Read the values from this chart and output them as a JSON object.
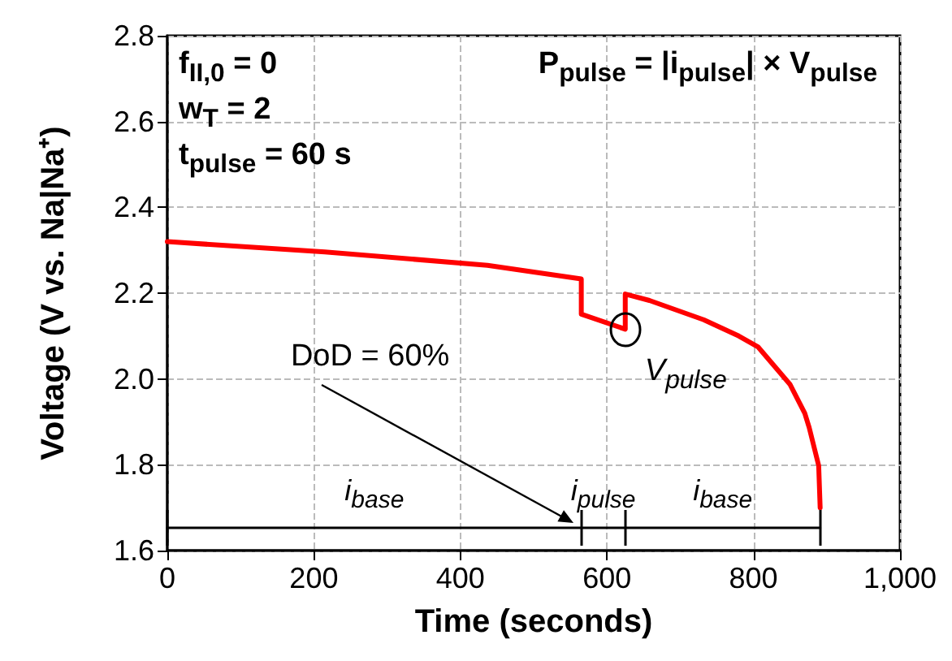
{
  "chart_data": {
    "type": "line",
    "xlabel": "Time (seconds)",
    "ylabel": "Voltage (V vs. Na|Na⁺)",
    "xlim": [
      0,
      1000
    ],
    "xticks": [
      0,
      200,
      400,
      600,
      800,
      {
        "value": 1000,
        "label": "1,000"
      }
    ],
    "ylim": [
      1.6,
      2.8
    ],
    "yticks": [
      1.6,
      1.8,
      {
        "value": 2.0,
        "label": "2.0"
      },
      2.2,
      2.4,
      2.6,
      2.8
    ],
    "grid": true,
    "marker": "none",
    "line_style": "solid",
    "series": [
      {
        "color": "#ff0000",
        "x": [
          0,
          215,
          437,
          565,
          565,
          625,
          625,
          658,
          732,
          780,
          806,
          850,
          870,
          876,
          889,
          891
        ],
        "values": [
          2.32,
          2.296,
          2.265,
          2.233,
          2.151,
          2.116,
          2.198,
          2.183,
          2.138,
          2.1,
          2.075,
          1.987,
          1.92,
          1.887,
          1.798,
          1.7
        ]
      },
      {
        "color": "#000000",
        "x": [
          0,
          565,
          625,
          891
        ],
        "values": [
          1.653,
          1.653,
          1.653,
          1.653
        ]
      }
    ],
    "annotations": [
      "f$_{II,0}$ = 0",
      "w$_{T}$ = 2",
      "t$_{pulse}$ = 60 s",
      "P$_{pulse}$ = |i$_{pulse}$| × V$_{pulse}$",
      "DoD = 60%",
      "i$_{base}$",
      "i$_{pulse}$",
      "i$_{base}$",
      {
        "text": "V$_{pulse}$",
        "x": 625,
        "y": 2.116
      }
    ]
  }
}
